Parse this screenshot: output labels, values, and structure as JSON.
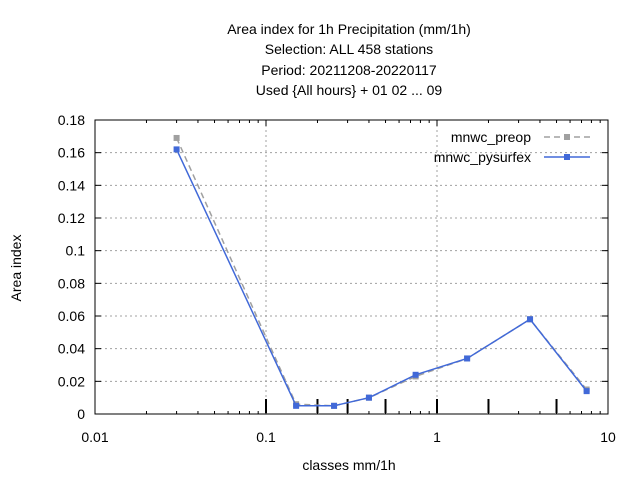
{
  "chart_data": {
    "type": "line",
    "title_lines": [
      "Area index  for 1h Precipitation (mm/1h)",
      "Selection: ALL    458 stations",
      "Period: 20211208-20220117",
      "Used {All hours} + 01 02 ... 09"
    ],
    "xlabel": "classes mm/1h",
    "ylabel": "Area index",
    "x_scale": "log",
    "xlim": [
      0.01,
      10
    ],
    "ylim": [
      0,
      0.18
    ],
    "x_ticks": [
      0.01,
      0.1,
      1,
      10
    ],
    "x_tick_labels": [
      "0.01",
      "0.1",
      "1",
      "10"
    ],
    "y_ticks": [
      0,
      0.02,
      0.04,
      0.06,
      0.08,
      0.1,
      0.12,
      0.14,
      0.16,
      0.18
    ],
    "y_tick_labels": [
      "0",
      "0.02",
      "0.04",
      "0.06",
      "0.08",
      "0.1",
      "0.12",
      "0.14",
      "0.16",
      "0.18"
    ],
    "class_boundaries": [
      0.1,
      0.2,
      0.3,
      0.5,
      1,
      2,
      5
    ],
    "grid": true,
    "legend_position": "top-right",
    "series": [
      {
        "name": "mnwc_preop",
        "color": "#a0a0a0",
        "style": "dashed",
        "marker": "square",
        "x": [
          0.03,
          0.15,
          0.25,
          0.4,
          0.75,
          1.5,
          3.5,
          7.5
        ],
        "y": [
          0.169,
          0.006,
          0.005,
          0.01,
          0.023,
          0.034,
          0.058,
          0.015
        ]
      },
      {
        "name": "mnwc_pysurfex",
        "color": "#4169d8",
        "style": "solid",
        "marker": "square",
        "x": [
          0.03,
          0.15,
          0.25,
          0.4,
          0.75,
          1.5,
          3.5,
          7.5
        ],
        "y": [
          0.162,
          0.005,
          0.005,
          0.01,
          0.024,
          0.034,
          0.058,
          0.014
        ]
      }
    ]
  }
}
